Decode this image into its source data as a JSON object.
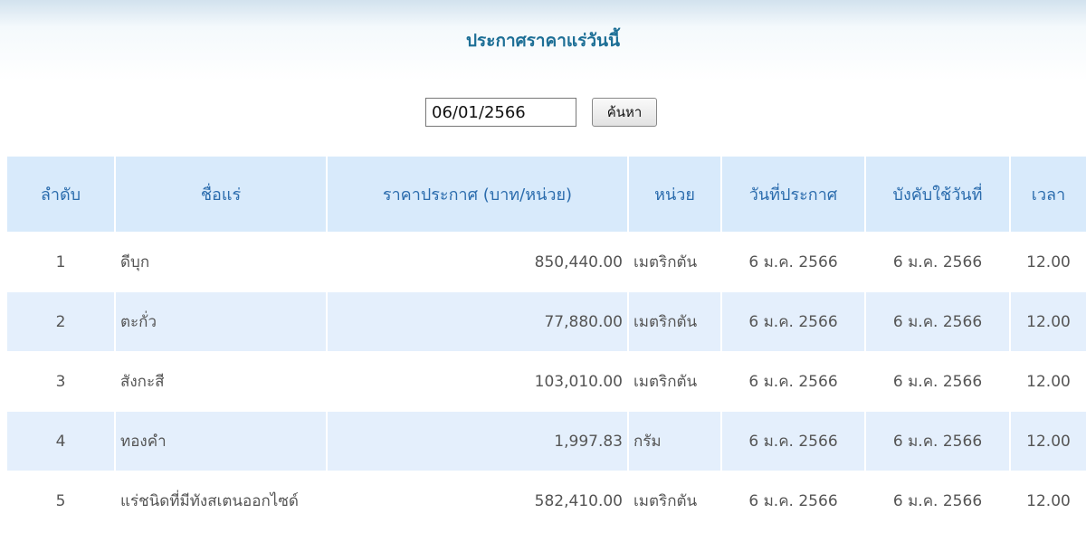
{
  "header": {
    "title": "ประกาศราคาแร่วันนี้"
  },
  "search": {
    "date": "06/01/2566",
    "button": "ค้นหา"
  },
  "table": {
    "columns": [
      "ลำดับ",
      "ชื่อแร่",
      "ราคาประกาศ (บาท/หน่วย)",
      "หน่วย",
      "วันที่ประกาศ",
      "บังคับใช้วันที่",
      "เวลา"
    ],
    "rows": [
      [
        "1",
        "ดีบุก",
        "850,440.00",
        "เมตริกตัน",
        "6 ม.ค. 2566",
        "6 ม.ค. 2566",
        "12.00"
      ],
      [
        "2",
        "ตะกั่ว",
        "77,880.00",
        "เมตริกตัน",
        "6 ม.ค. 2566",
        "6 ม.ค. 2566",
        "12.00"
      ],
      [
        "3",
        "สังกะสี",
        "103,010.00",
        "เมตริกตัน",
        "6 ม.ค. 2566",
        "6 ม.ค. 2566",
        "12.00"
      ],
      [
        "4",
        "ทองคำ",
        "1,997.83",
        "กรัม",
        "6 ม.ค. 2566",
        "6 ม.ค. 2566",
        "12.00"
      ],
      [
        "5",
        "แร่ชนิดที่มีทังสเตนออกไซด์",
        "582,410.00",
        "เมตริกตัน",
        "6 ม.ค. 2566",
        "6 ม.ค. 2566",
        "12.00"
      ]
    ]
  }
}
